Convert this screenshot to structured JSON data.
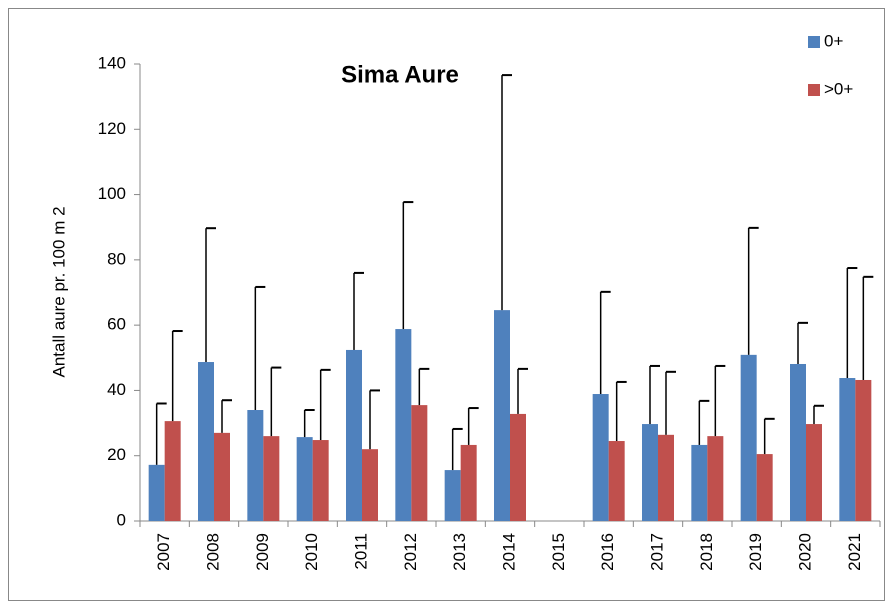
{
  "chart_data": {
    "type": "bar",
    "title": "Sima Aure",
    "y_label": "Antall aure pr. 100 m 2",
    "categories": [
      "2007",
      "2008",
      "2009",
      "2010",
      "2011",
      "2012",
      "2013",
      "2014",
      "2015",
      "2016",
      "2017",
      "2018",
      "2019",
      "2020",
      "2021"
    ],
    "series": [
      {
        "name": "0+",
        "color": "#4f81bd",
        "values": [
          17.2,
          48.7,
          34,
          25.7,
          52.4,
          58.8,
          15.6,
          64.6,
          null,
          38.9,
          29.7,
          23.3,
          50.9,
          48.1,
          43.8
        ],
        "errors": [
          18.8,
          41,
          37.7,
          8.3,
          23.6,
          38.9,
          12.6,
          72,
          null,
          31.3,
          17.8,
          13.5,
          38.9,
          12.6,
          33.7
        ]
      },
      {
        "name": ">0+",
        "color": "#c0504d",
        "values": [
          30.6,
          27,
          26,
          24.8,
          22,
          35.5,
          23.3,
          32.8,
          null,
          24.5,
          26.4,
          26,
          20.5,
          29.7,
          43.2
        ],
        "errors": [
          27.6,
          10,
          21,
          21.5,
          18,
          11.1,
          11.3,
          13.8,
          null,
          18.1,
          19.3,
          21.5,
          10.8,
          5.6,
          31.6
        ]
      }
    ],
    "ylim": [
      0,
      140
    ],
    "yticks": [
      0,
      20,
      40,
      60,
      80,
      100,
      120,
      140
    ],
    "grid": false,
    "legend": "upper right"
  }
}
